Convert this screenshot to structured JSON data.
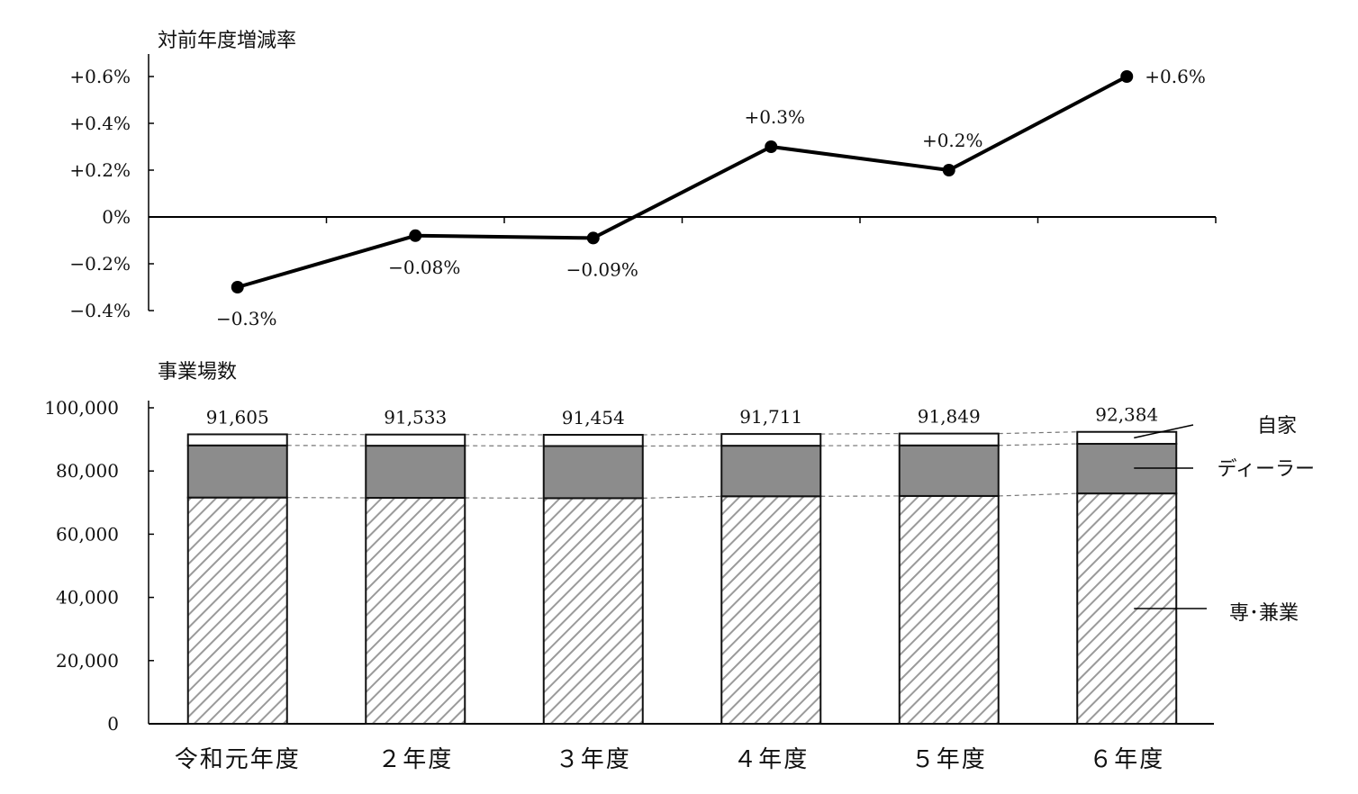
{
  "colors": {
    "line": "#000000",
    "bar_outline": "#111111",
    "dealer_fill": "#8c8c8c",
    "hatch": "#9a9a9a",
    "jika_fill": "#ffffff",
    "connector": "#777777"
  },
  "chart_data": [
    {
      "type": "line",
      "ylabel": "対前年度増減率",
      "categories": [
        "令和元年度",
        "２年度",
        "３年度",
        "４年度",
        "５年度",
        "６年度"
      ],
      "values": [
        -0.3,
        -0.08,
        -0.09,
        0.3,
        0.2,
        0.6
      ],
      "data_labels": [
        "−0.3%",
        "−0.08%",
        "−0.09%",
        "+0.3%",
        "+0.2%",
        "+0.6%"
      ],
      "ylim": [
        -0.4,
        0.6
      ],
      "yticks": [
        0.6,
        0.4,
        0.2,
        0,
        -0.2,
        -0.4
      ],
      "ytick_labels": [
        "+0.6%",
        "+0.4%",
        "+0.2%",
        "0%",
        "−0.2%",
        "−0.4%"
      ],
      "grid": false
    },
    {
      "type": "bar",
      "stacked": true,
      "ylabel": "事業場数",
      "categories": [
        "令和元年度",
        "２年度",
        "３年度",
        "４年度",
        "５年度",
        "６年度"
      ],
      "series": [
        {
          "name": "専･兼業",
          "pattern": "hatched",
          "values": [
            71600,
            71500,
            71400,
            72000,
            72100,
            72900
          ]
        },
        {
          "name": "ディーラー",
          "pattern": "gray",
          "values": [
            16500,
            16500,
            16500,
            16000,
            16000,
            15700
          ]
        },
        {
          "name": "自家",
          "pattern": "white",
          "values": [
            3505,
            3533,
            3554,
            3711,
            3749,
            3784
          ]
        }
      ],
      "totals": [
        91605,
        91533,
        91454,
        91711,
        91849,
        92384
      ],
      "total_labels": [
        "91,605",
        "91,533",
        "91,454",
        "91,711",
        "91,849",
        "92,384"
      ],
      "ylim": [
        0,
        100000
      ],
      "yticks": [
        100000,
        80000,
        60000,
        40000,
        20000,
        0
      ],
      "ytick_labels": [
        "100,000",
        "80,000",
        "60,000",
        "40,000",
        "20,000",
        "0"
      ],
      "legend_position": "right",
      "grid": false
    }
  ]
}
